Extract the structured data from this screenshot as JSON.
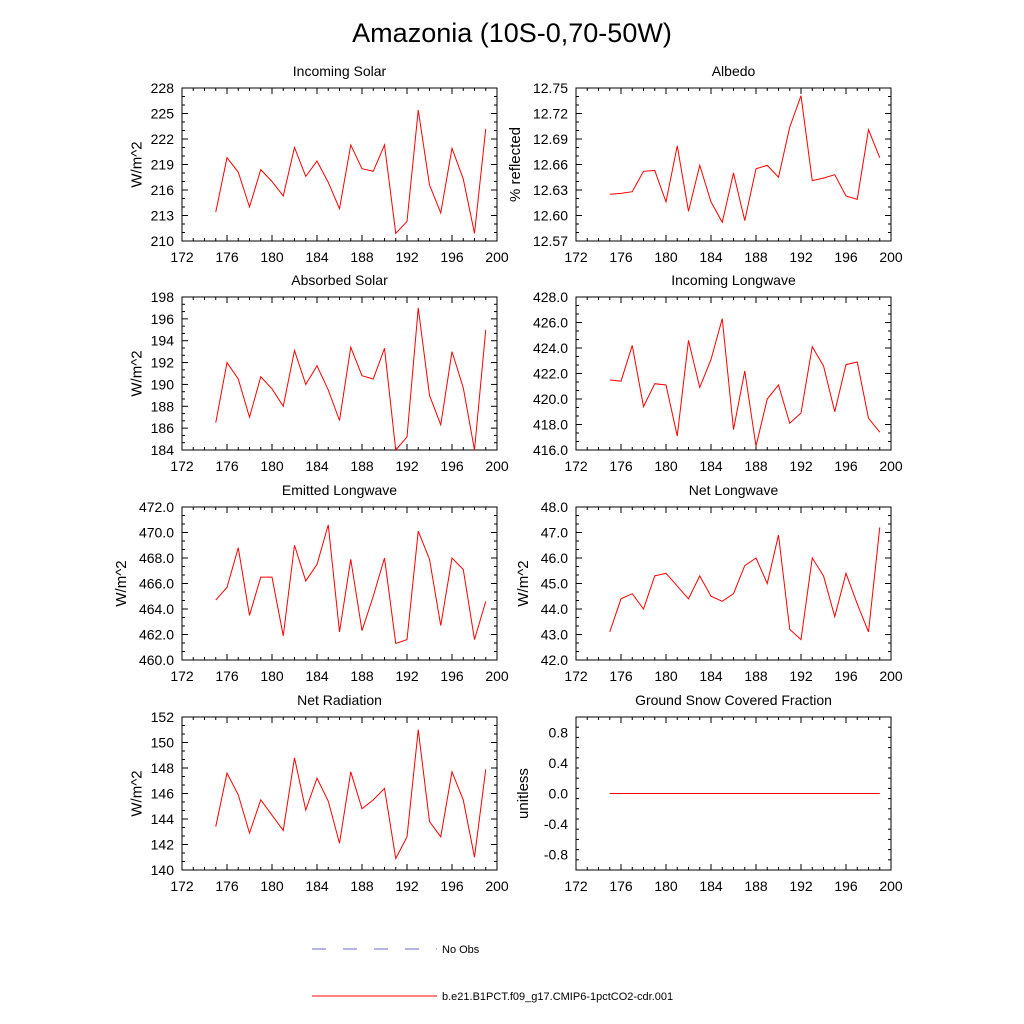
{
  "title": "Amazonia (10S-0,70-50W)",
  "colors": {
    "model": "#ff0000",
    "obs": "#6a6ad0",
    "axis": "#000000"
  },
  "legend": [
    {
      "label": "No Obs",
      "style": "dashed",
      "color": "#6a6ad0"
    },
    {
      "label": "b.e21.B1PCT.f09_g17.CMIP6-1pctCO2-cdr.001",
      "style": "solid",
      "color": "#ff0000"
    }
  ],
  "chart_data": [
    {
      "type": "line",
      "title": "Incoming Solar",
      "ylabel": "W/m^2",
      "xlim": [
        172,
        200
      ],
      "xticks": [
        "172",
        "176",
        "180",
        "184",
        "188",
        "192",
        "196",
        "200"
      ],
      "ylim": [
        210,
        228
      ],
      "yticks": [
        "210",
        "213",
        "216",
        "219",
        "222",
        "225",
        "228"
      ],
      "x": [
        175,
        176,
        177,
        178,
        179,
        180,
        181,
        182,
        183,
        184,
        185,
        186,
        187,
        188,
        189,
        190,
        191,
        192,
        193,
        194,
        195,
        196,
        197,
        198,
        199
      ],
      "series": [
        {
          "values": [
            213.4,
            219.8,
            218.1,
            214.0,
            218.4,
            217.0,
            215.3,
            221.0,
            217.6,
            219.4,
            216.9,
            213.8,
            221.3,
            218.5,
            218.2,
            221.3,
            210.9,
            212.3,
            225.4,
            216.6,
            213.3,
            220.9,
            217.3,
            210.9,
            223.2
          ]
        }
      ]
    },
    {
      "type": "line",
      "title": "Albedo",
      "ylabel": "% reflected",
      "xlim": [
        172,
        200
      ],
      "xticks": [
        "172",
        "176",
        "180",
        "184",
        "188",
        "192",
        "196",
        "200"
      ],
      "ylim": [
        12.57,
        12.75
      ],
      "yticks": [
        "12.57",
        "12.60",
        "12.63",
        "12.66",
        "12.69",
        "12.72",
        "12.75"
      ],
      "x": [
        175,
        176,
        177,
        178,
        179,
        180,
        181,
        182,
        183,
        184,
        185,
        186,
        187,
        188,
        189,
        190,
        191,
        192,
        193,
        194,
        195,
        196,
        197,
        198,
        199
      ],
      "series": [
        {
          "values": [
            12.625,
            12.626,
            12.628,
            12.652,
            12.653,
            12.616,
            12.682,
            12.605,
            12.659,
            12.616,
            12.592,
            12.65,
            12.594,
            12.655,
            12.659,
            12.645,
            12.704,
            12.741,
            12.641,
            12.644,
            12.648,
            12.623,
            12.619,
            12.701,
            12.668
          ]
        }
      ]
    },
    {
      "type": "line",
      "title": "Absorbed Solar",
      "ylabel": "W/m^2",
      "xlim": [
        172,
        200
      ],
      "xticks": [
        "172",
        "176",
        "180",
        "184",
        "188",
        "192",
        "196",
        "200"
      ],
      "ylim": [
        184,
        198
      ],
      "yticks": [
        "184",
        "186",
        "188",
        "190",
        "192",
        "194",
        "196",
        "198"
      ],
      "x": [
        175,
        176,
        177,
        178,
        179,
        180,
        181,
        182,
        183,
        184,
        185,
        186,
        187,
        188,
        189,
        190,
        191,
        192,
        193,
        194,
        195,
        196,
        197,
        198,
        199
      ],
      "series": [
        {
          "values": [
            186.5,
            192.0,
            190.5,
            187.0,
            190.7,
            189.6,
            188.0,
            193.1,
            190.0,
            191.7,
            189.5,
            186.7,
            193.4,
            190.8,
            190.5,
            193.3,
            184.0,
            185.2,
            197.0,
            189.0,
            186.3,
            193.0,
            189.7,
            184.0,
            195.0
          ]
        }
      ]
    },
    {
      "type": "line",
      "title": "Incoming Longwave",
      "ylabel": "",
      "xlim": [
        172,
        200
      ],
      "xticks": [
        "172",
        "176",
        "180",
        "184",
        "188",
        "192",
        "196",
        "200"
      ],
      "ylim": [
        416,
        428
      ],
      "yticks": [
        "416.0",
        "418.0",
        "420.0",
        "422.0",
        "424.0",
        "426.0",
        "428.0"
      ],
      "x": [
        175,
        176,
        177,
        178,
        179,
        180,
        181,
        182,
        183,
        184,
        185,
        186,
        187,
        188,
        189,
        190,
        191,
        192,
        193,
        194,
        195,
        196,
        197,
        198,
        199
      ],
      "series": [
        {
          "values": [
            421.5,
            421.4,
            424.2,
            419.4,
            421.2,
            421.1,
            417.1,
            424.6,
            420.9,
            423.1,
            426.3,
            417.6,
            422.2,
            416.3,
            420.0,
            421.1,
            418.1,
            418.9,
            424.1,
            422.6,
            419.0,
            422.7,
            422.9,
            418.5,
            417.4
          ]
        }
      ]
    },
    {
      "type": "line",
      "title": "Emitted Longwave",
      "ylabel": "W/m^2",
      "xlim": [
        172,
        200
      ],
      "xticks": [
        "172",
        "176",
        "180",
        "184",
        "188",
        "192",
        "196",
        "200"
      ],
      "ylim": [
        460,
        472
      ],
      "yticks": [
        "460.0",
        "462.0",
        "464.0",
        "466.0",
        "468.0",
        "470.0",
        "472.0"
      ],
      "x": [
        175,
        176,
        177,
        178,
        179,
        180,
        181,
        182,
        183,
        184,
        185,
        186,
        187,
        188,
        189,
        190,
        191,
        192,
        193,
        194,
        195,
        196,
        197,
        198,
        199
      ],
      "series": [
        {
          "values": [
            464.7,
            465.7,
            468.8,
            463.5,
            466.5,
            466.5,
            461.9,
            469.0,
            466.2,
            467.5,
            470.6,
            462.2,
            467.9,
            462.3,
            465.0,
            468.0,
            461.3,
            461.6,
            470.1,
            467.9,
            462.7,
            468.0,
            467.1,
            461.6,
            464.6
          ]
        }
      ]
    },
    {
      "type": "line",
      "title": "Net Longwave",
      "ylabel": "W/m^2",
      "xlim": [
        172,
        200
      ],
      "xticks": [
        "172",
        "176",
        "180",
        "184",
        "188",
        "192",
        "196",
        "200"
      ],
      "ylim": [
        42,
        48
      ],
      "yticks": [
        "42.0",
        "43.0",
        "44.0",
        "45.0",
        "46.0",
        "47.0",
        "48.0"
      ],
      "x": [
        175,
        176,
        177,
        178,
        179,
        180,
        181,
        182,
        183,
        184,
        185,
        186,
        187,
        188,
        189,
        190,
        191,
        192,
        193,
        194,
        195,
        196,
        197,
        198,
        199
      ],
      "series": [
        {
          "values": [
            43.1,
            44.4,
            44.6,
            44.0,
            45.3,
            45.4,
            44.9,
            44.4,
            45.3,
            44.5,
            44.3,
            44.6,
            45.7,
            46.0,
            45.0,
            46.9,
            43.2,
            42.8,
            46.0,
            45.3,
            43.7,
            45.4,
            44.2,
            43.1,
            47.2
          ]
        }
      ]
    },
    {
      "type": "line",
      "title": "Net Radiation",
      "ylabel": "W/m^2",
      "xlim": [
        172,
        200
      ],
      "xticks": [
        "172",
        "176",
        "180",
        "184",
        "188",
        "192",
        "196",
        "200"
      ],
      "ylim": [
        140,
        152
      ],
      "yticks": [
        "140",
        "142",
        "144",
        "146",
        "148",
        "150",
        "152"
      ],
      "x": [
        175,
        176,
        177,
        178,
        179,
        180,
        181,
        182,
        183,
        184,
        185,
        186,
        187,
        188,
        189,
        190,
        191,
        192,
        193,
        194,
        195,
        196,
        197,
        198,
        199
      ],
      "series": [
        {
          "values": [
            143.4,
            147.6,
            145.9,
            142.9,
            145.5,
            144.3,
            143.1,
            148.8,
            144.7,
            147.2,
            145.4,
            142.1,
            147.7,
            144.8,
            145.5,
            146.4,
            140.9,
            142.6,
            151.0,
            143.8,
            142.6,
            147.7,
            145.5,
            141.0,
            147.9
          ]
        }
      ]
    },
    {
      "type": "line",
      "title": "Ground Snow Covered Fraction",
      "ylabel": "unitless",
      "xlim": [
        172,
        200
      ],
      "xticks": [
        "172",
        "176",
        "180",
        "184",
        "188",
        "192",
        "196",
        "200"
      ],
      "ylim": [
        -1.0,
        1.0
      ],
      "yticks": [
        "-0.8",
        "-0.4",
        "0.0",
        "0.4",
        "0.8"
      ],
      "x": [
        175,
        199
      ],
      "series": [
        {
          "values": [
            0.0,
            0.0
          ]
        }
      ]
    }
  ]
}
